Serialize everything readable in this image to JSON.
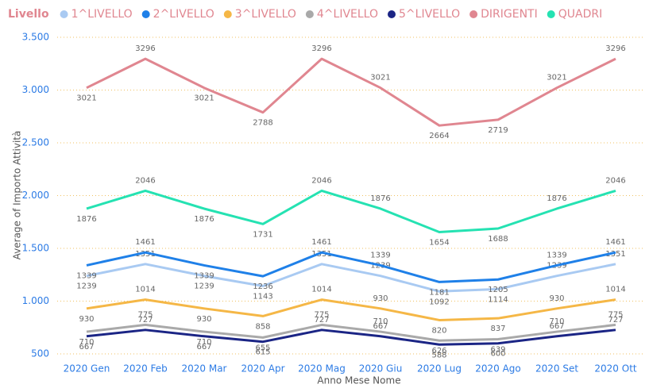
{
  "chart_data": {
    "type": "line",
    "legend_title": "Livello",
    "legend": "top",
    "ylabel": "Average of Importo Attività",
    "xlabel": "Anno Mese Nome",
    "categories": [
      "2020 Gen",
      "2020 Feb",
      "2020 Mar",
      "2020 Apr",
      "2020 Mag",
      "2020 Giu",
      "2020 Lug",
      "2020 Ago",
      "2020 Set",
      "2020 Ott"
    ],
    "series": [
      {
        "name": "1^LIVELLO",
        "color": "#a9caf2",
        "values": [
          1239,
          1351,
          1239,
          1143,
          1351,
          1239,
          1092,
          1114,
          1239,
          1351
        ]
      },
      {
        "name": "2^LIVELLO",
        "color": "#1f80e8",
        "values": [
          1339,
          1461,
          1339,
          1236,
          1461,
          1339,
          1181,
          1205,
          1339,
          1461
        ]
      },
      {
        "name": "3^LIVELLO",
        "color": "#f5b746",
        "values": [
          930,
          1014,
          930,
          858,
          1014,
          930,
          820,
          837,
          930,
          1014
        ]
      },
      {
        "name": "4^LIVELLO",
        "color": "#a9a9a9",
        "values": [
          710,
          775,
          710,
          655,
          775,
          710,
          626,
          639,
          710,
          775
        ]
      },
      {
        "name": "5^LIVELLO",
        "color": "#1b2585",
        "values": [
          667,
          727,
          667,
          615,
          727,
          667,
          588,
          600,
          667,
          727
        ]
      },
      {
        "name": "DIRIGENTI",
        "color": "#e08690",
        "values": [
          3021,
          3296,
          3021,
          2788,
          3296,
          3021,
          2664,
          2719,
          3021,
          3296
        ]
      },
      {
        "name": "QUADRI",
        "color": "#25e2b2",
        "values": [
          1876,
          2046,
          1876,
          1731,
          2046,
          1876,
          1654,
          1688,
          1876,
          2046
        ]
      }
    ],
    "ylim": [
      500,
      3500
    ],
    "yticks": [
      500,
      {
        "value": 1000,
        "label": "1.000"
      },
      {
        "value": 1500,
        "label": "1.500"
      },
      {
        "value": 2000,
        "label": "2.000"
      },
      {
        "value": 2500,
        "label": "2.500"
      },
      {
        "value": 3000,
        "label": "3.000"
      },
      {
        "value": 3500,
        "label": "3.500"
      }
    ],
    "grid": true
  }
}
